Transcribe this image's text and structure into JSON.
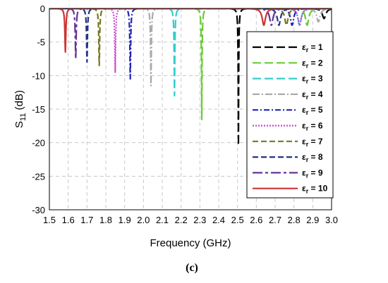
{
  "chart_data": {
    "type": "line",
    "xlabel": "Frequency (GHz)",
    "ylabel_main": "S",
    "ylabel_sub": "11",
    "ylabel_unit": " (dB)",
    "xlim": [
      1.5,
      3.0
    ],
    "ylim": [
      -30,
      0
    ],
    "xticks": [
      "1.5",
      "1.6",
      "1.7",
      "1.8",
      "1.9",
      "2.0",
      "2.1",
      "2.2",
      "2.3",
      "2.4",
      "2.5",
      "2.6",
      "2.7",
      "2.8",
      "2.9",
      "3.0"
    ],
    "yticks": [
      "0",
      "-5",
      "-10",
      "-15",
      "-20",
      "-25",
      "-30"
    ],
    "grid": true,
    "legend_position": "right",
    "caption": "(c)",
    "series": [
      {
        "name": "1",
        "color": "#000000",
        "dash": "12,5",
        "resonances": [
          [
            2.505,
            -20.3
          ],
          [
            2.96,
            -1.5
          ]
        ]
      },
      {
        "name": "2",
        "color": "#66cc33",
        "dash": "12,5",
        "resonances": [
          [
            2.31,
            -16.5
          ],
          [
            2.87,
            -2.5
          ]
        ]
      },
      {
        "name": "3",
        "color": "#33cccc",
        "dash": "12,5",
        "resonances": [
          [
            2.165,
            -13.0
          ],
          [
            2.83,
            -2.5
          ]
        ]
      },
      {
        "name": "4",
        "color": "#aaaaaa",
        "dash": "10,3,2,3",
        "resonances": [
          [
            2.04,
            -11.5
          ],
          [
            2.93,
            -2.0
          ]
        ]
      },
      {
        "name": "5",
        "color": "#2222bb",
        "dash": "8,3,2,3",
        "resonances": [
          [
            1.93,
            -10.5
          ],
          [
            2.79,
            -2.5
          ]
        ]
      },
      {
        "name": "6",
        "color": "#cc44cc",
        "dash": "2,2",
        "resonances": [
          [
            1.85,
            -9.5
          ],
          [
            2.83,
            -2.5
          ]
        ]
      },
      {
        "name": "7",
        "color": "#777722",
        "dash": "8,4",
        "resonances": [
          [
            1.765,
            -8.5
          ],
          [
            2.76,
            -2.5
          ]
        ]
      },
      {
        "name": "8",
        "color": "#223388",
        "dash": "8,4",
        "resonances": [
          [
            1.7,
            -8.0
          ],
          [
            2.72,
            -2.5
          ]
        ]
      },
      {
        "name": "9",
        "color": "#663399",
        "dash": "14,4,4,4",
        "resonances": [
          [
            1.64,
            -7.5
          ],
          [
            2.68,
            -2.5
          ]
        ]
      },
      {
        "name": "10",
        "color": "#cc3333",
        "dash": "",
        "resonances": [
          [
            1.585,
            -6.5
          ],
          [
            2.64,
            -2.5
          ]
        ]
      }
    ]
  }
}
